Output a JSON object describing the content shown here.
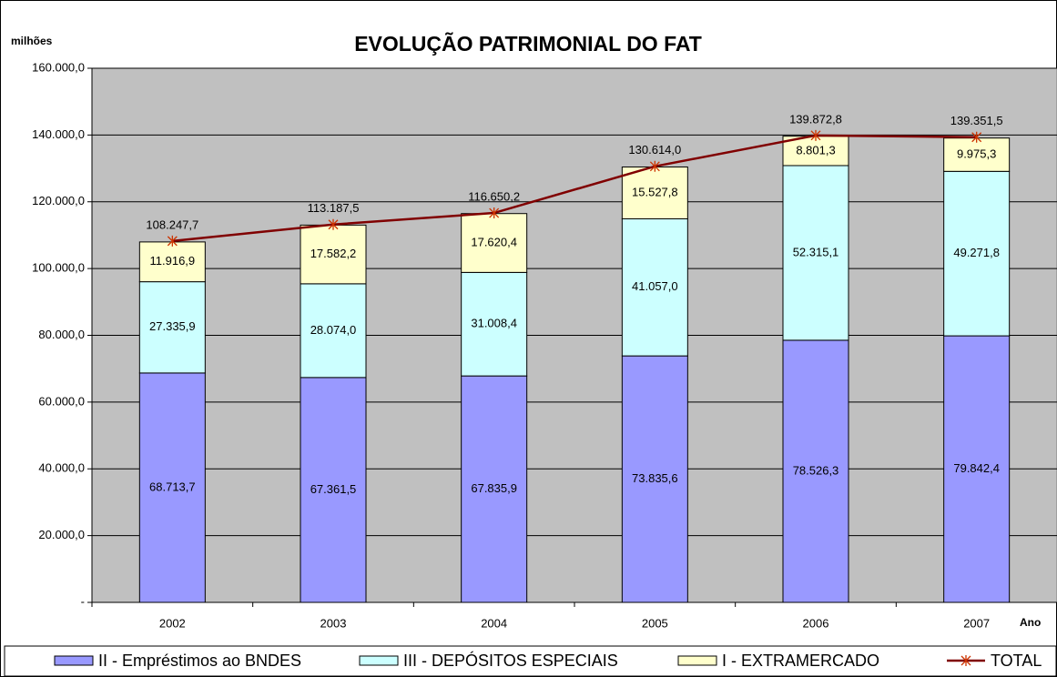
{
  "chart_data": {
    "type": "bar",
    "stacked": true,
    "title": "EVOLUÇÃO PATRIMONIAL DO FAT",
    "y_label": "milhões",
    "x_label": "Ano",
    "categories": [
      "2002",
      "2003",
      "2004",
      "2005",
      "2006",
      "2007"
    ],
    "ylim": [
      0,
      160000
    ],
    "yticks": [
      {
        "value": 0,
        "label": "-"
      },
      {
        "value": 20000,
        "label": "20.000,0"
      },
      {
        "value": 40000,
        "label": "40.000,0"
      },
      {
        "value": 60000,
        "label": "60.000,0"
      },
      {
        "value": 80000,
        "label": "80.000,0"
      },
      {
        "value": 100000,
        "label": "100.000,0"
      },
      {
        "value": 120000,
        "label": "120.000,0"
      },
      {
        "value": 140000,
        "label": "140.000,0"
      },
      {
        "value": 160000,
        "label": "160.000,0"
      }
    ],
    "grid": true,
    "background": "#c0c0c0",
    "legend": "bottom",
    "series": [
      {
        "name": "II - Empréstimos ao BNDES",
        "type": "bar",
        "color": "#9999ff",
        "values": [
          68713.7,
          67361.5,
          67835.9,
          73835.6,
          78526.3,
          79842.4
        ],
        "value_labels": [
          "68.713,7",
          "67.361,5",
          "67.835,9",
          "73.835,6",
          "78.526,3",
          "79.842,4"
        ]
      },
      {
        "name": "III - DEPÓSITOS ESPECIAIS",
        "type": "bar",
        "color": "#ccffff",
        "values": [
          27335.9,
          28074.0,
          31008.4,
          41057.0,
          52315.1,
          49271.8
        ],
        "value_labels": [
          "27.335,9",
          "28.074,0",
          "31.008,4",
          "41.057,0",
          "52.315,1",
          "49.271,8"
        ]
      },
      {
        "name": "I - EXTRAMERCADO",
        "type": "bar",
        "color": "#ffffcc",
        "values": [
          11916.9,
          17582.2,
          17620.4,
          15527.8,
          8801.3,
          9975.3
        ],
        "value_labels": [
          "11.916,9",
          "17.582,2",
          "17.620,4",
          "15.527,8",
          "8.801,3",
          "9.975,3"
        ]
      },
      {
        "name": "TOTAL",
        "type": "line",
        "color": "#800000",
        "values": [
          108247.7,
          113187.5,
          116650.2,
          130614.0,
          139872.8,
          139351.5
        ],
        "value_labels": [
          "108.247,7",
          "113.187,5",
          "116.650,2",
          "130.614,0",
          "139.872,8",
          "139.351,5"
        ]
      }
    ]
  }
}
